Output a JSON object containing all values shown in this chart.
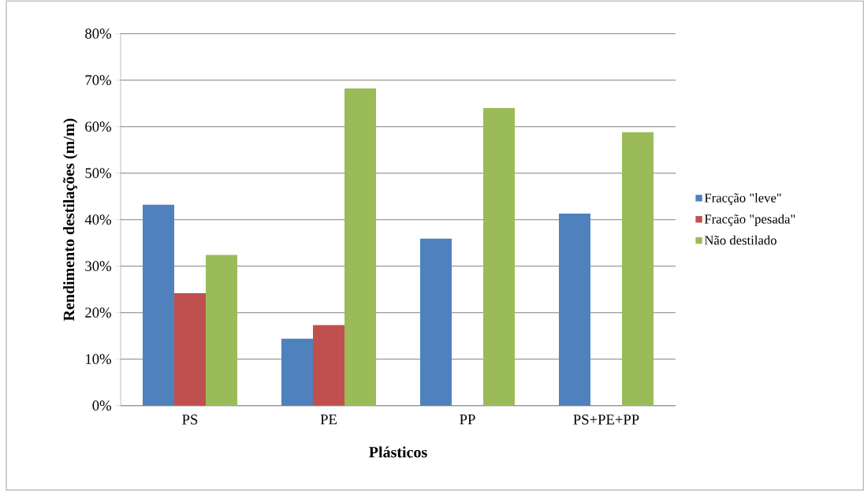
{
  "chart_data": {
    "type": "bar",
    "xlabel": "Plásticos",
    "ylabel": "Rendimento destilações (m/m)",
    "categories": [
      "PS",
      "PE",
      "PP",
      "PS+PE+PP"
    ],
    "series": [
      {
        "name": "Fracção \"leve\"",
        "color": "#4f81bd",
        "values": [
          43.2,
          14.4,
          35.9,
          41.3
        ]
      },
      {
        "name": "Fracção \"pesada\"",
        "color": "#c0504d",
        "values": [
          24.2,
          17.3,
          null,
          null
        ]
      },
      {
        "name": "Não destilado",
        "color": "#9bbb59",
        "values": [
          32.4,
          68.2,
          64.0,
          58.8
        ]
      }
    ],
    "ylim": [
      0,
      80
    ],
    "yticks": [
      {
        "value": 0,
        "label": "0%"
      },
      {
        "value": 10,
        "label": "10%"
      },
      {
        "value": 20,
        "label": "20%"
      },
      {
        "value": 30,
        "label": "30%"
      },
      {
        "value": 40,
        "label": "40%"
      },
      {
        "value": 50,
        "label": "50%"
      },
      {
        "value": 60,
        "label": "60%"
      },
      {
        "value": 70,
        "label": "70%"
      },
      {
        "value": 80,
        "label": "80%"
      }
    ],
    "grid": "y",
    "legend": "right"
  }
}
